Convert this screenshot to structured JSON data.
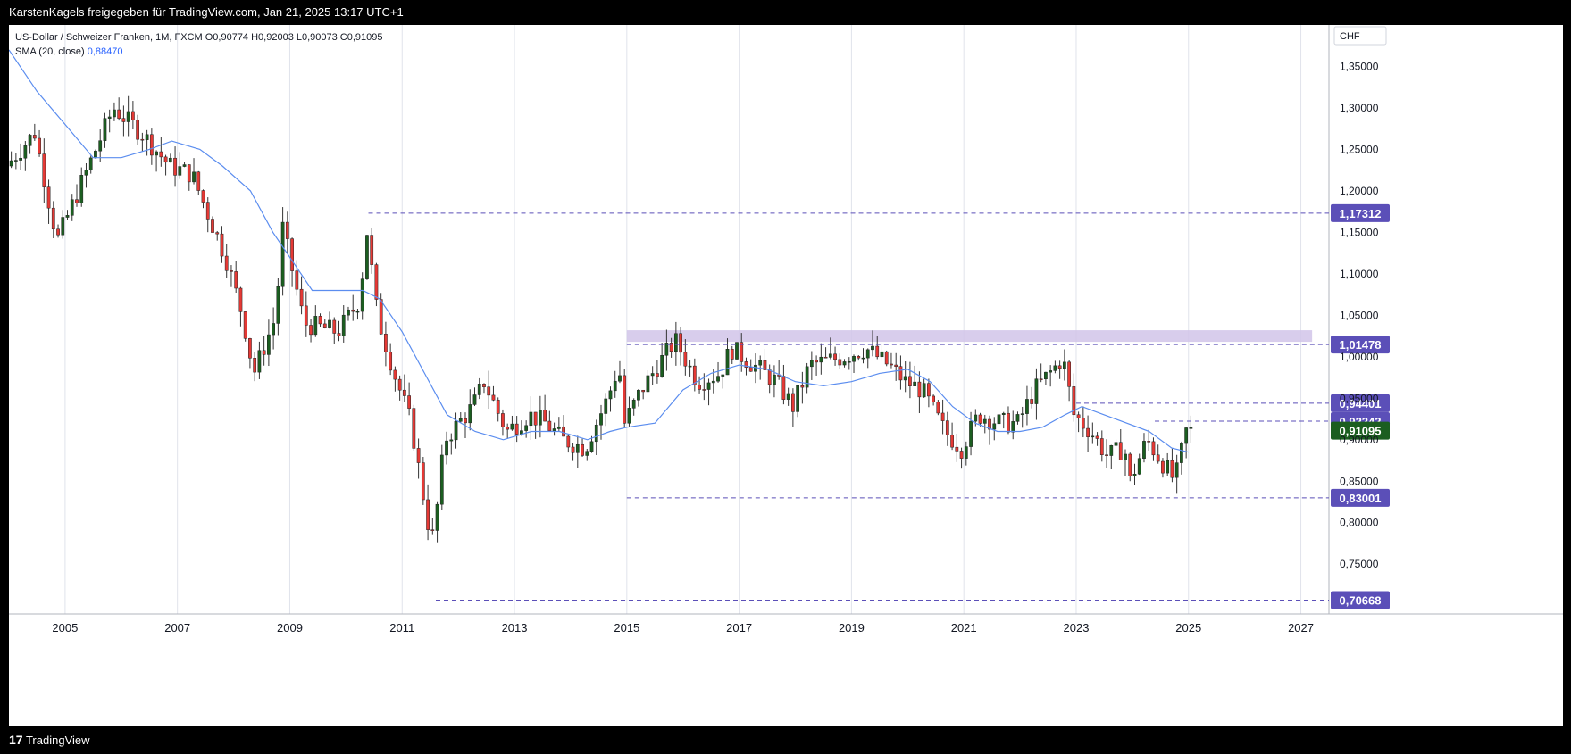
{
  "header": {
    "attribution": "KarstenKagels freigegeben für TradingView.com, Jan 21, 2025 13:17 UTC+1"
  },
  "legend": {
    "symbol": "US-Dollar / Schweizer Franken, 1M, FXCM",
    "ohlc": "O0,90774  H0,92003  L0,90073  C0,91095",
    "sma_label": "SMA (20, close)",
    "sma_value": "0,88470"
  },
  "footer": {
    "brand": "TradingView",
    "brand_mark": "17"
  },
  "colors": {
    "up": "#26a69a",
    "up_dark": "#1b5e20",
    "down": "#e53935",
    "sma": "#5b8def",
    "level": "#5b4fb8",
    "zone": "#d1c4e9",
    "last": "#1b5e20"
  },
  "chart_data": {
    "type": "candlestick",
    "currency": "CHF",
    "y_ticks": [
      0.75,
      0.8,
      0.85,
      0.9,
      0.95,
      1.0,
      1.05,
      1.1,
      1.15,
      1.2,
      1.25,
      1.3,
      1.35
    ],
    "y_tick_labels": [
      "0,75000",
      "0,80000",
      "0,85000",
      "0,90000",
      "0,95000",
      "1,00000",
      "1,05000",
      "1,10000",
      "1,15000",
      "1,20000",
      "1,25000",
      "1,30000",
      "1,35000"
    ],
    "x_ticks": [
      2005,
      2007,
      2009,
      2011,
      2013,
      2015,
      2017,
      2019,
      2021,
      2023,
      2025,
      2027
    ],
    "x_tick_labels": [
      "2005",
      "2007",
      "2009",
      "2011",
      "2013",
      "2015",
      "2017",
      "2019",
      "2021",
      "2023",
      "2025",
      "2027"
    ],
    "y_range": [
      0.69,
      1.4
    ],
    "x_range": [
      2004.0,
      2027.5
    ],
    "levels": [
      {
        "label": "1,17312",
        "value": 1.17312,
        "from": 2010.4
      },
      {
        "label": "1,01478",
        "value": 1.01478,
        "from": 2015.0
      },
      {
        "label": "0,94401",
        "value": 0.94401,
        "from": 2023.0
      },
      {
        "label": "0,92242",
        "value": 0.92242,
        "from": 2024.4
      },
      {
        "label": "0,83001",
        "value": 0.83001,
        "from": 2015.0
      },
      {
        "label": "0,70668",
        "value": 0.70668,
        "from": 2011.6
      }
    ],
    "last_price": {
      "label": "0,91095",
      "value": 0.91095
    },
    "resistance_zone": {
      "from": 2015.0,
      "to": 2027.2,
      "low": 1.018,
      "high": 1.032
    },
    "monthly_closes": [
      [
        2004.0,
        1.23
      ],
      [
        2004.5,
        1.27
      ],
      [
        2004.9,
        1.14
      ],
      [
        2005.4,
        1.22
      ],
      [
        2005.9,
        1.3
      ],
      [
        2006.4,
        1.27
      ],
      [
        2006.9,
        1.23
      ],
      [
        2007.3,
        1.22
      ],
      [
        2007.9,
        1.12
      ],
      [
        2008.2,
        1.05
      ],
      [
        2008.4,
        0.98
      ],
      [
        2008.8,
        1.05
      ],
      [
        2008.9,
        1.16
      ],
      [
        2009.3,
        1.04
      ],
      [
        2009.9,
        1.03
      ],
      [
        2010.3,
        1.07
      ],
      [
        2010.4,
        1.16
      ],
      [
        2010.6,
        1.05
      ],
      [
        2010.9,
        0.98
      ],
      [
        2011.2,
        0.92
      ],
      [
        2011.5,
        0.8
      ],
      [
        2011.6,
        0.78
      ],
      [
        2011.8,
        0.9
      ],
      [
        2012.3,
        0.94
      ],
      [
        2012.5,
        0.97
      ],
      [
        2012.9,
        0.91
      ],
      [
        2013.3,
        0.93
      ],
      [
        2013.6,
        0.92
      ],
      [
        2013.9,
        0.9
      ],
      [
        2014.3,
        0.89
      ],
      [
        2014.7,
        0.95
      ],
      [
        2014.9,
        0.99
      ],
      [
        2015.0,
        0.92
      ],
      [
        2015.3,
        0.96
      ],
      [
        2015.9,
        1.02
      ],
      [
        2016.3,
        0.97
      ],
      [
        2016.7,
        0.98
      ],
      [
        2016.9,
        1.01
      ],
      [
        2017.3,
        0.99
      ],
      [
        2017.7,
        0.97
      ],
      [
        2018.0,
        0.94
      ],
      [
        2018.3,
        0.99
      ],
      [
        2018.9,
        1.0
      ],
      [
        2019.3,
        1.01
      ],
      [
        2019.7,
        0.99
      ],
      [
        2020.0,
        0.97
      ],
      [
        2020.3,
        0.96
      ],
      [
        2020.7,
        0.91
      ],
      [
        2021.0,
        0.89
      ],
      [
        2021.3,
        0.93
      ],
      [
        2021.7,
        0.92
      ],
      [
        2022.0,
        0.92
      ],
      [
        2022.3,
        0.96
      ],
      [
        2022.7,
        0.99
      ],
      [
        2022.8,
        1.0
      ],
      [
        2023.0,
        0.93
      ],
      [
        2023.3,
        0.91
      ],
      [
        2023.6,
        0.88
      ],
      [
        2023.9,
        0.89
      ],
      [
        2024.0,
        0.85
      ],
      [
        2024.3,
        0.9
      ],
      [
        2024.6,
        0.87
      ],
      [
        2024.8,
        0.85
      ],
      [
        2024.9,
        0.88
      ],
      [
        2025.0,
        0.91
      ]
    ],
    "sma_points": [
      [
        2004.0,
        1.37
      ],
      [
        2004.5,
        1.32
      ],
      [
        2005.0,
        1.28
      ],
      [
        2005.5,
        1.24
      ],
      [
        2006.0,
        1.24
      ],
      [
        2006.5,
        1.25
      ],
      [
        2006.9,
        1.26
      ],
      [
        2007.4,
        1.25
      ],
      [
        2007.8,
        1.23
      ],
      [
        2008.3,
        1.2
      ],
      [
        2008.7,
        1.15
      ],
      [
        2009.0,
        1.12
      ],
      [
        2009.4,
        1.08
      ],
      [
        2009.8,
        1.08
      ],
      [
        2010.3,
        1.08
      ],
      [
        2010.6,
        1.07
      ],
      [
        2011.0,
        1.03
      ],
      [
        2011.4,
        0.98
      ],
      [
        2011.8,
        0.93
      ],
      [
        2012.3,
        0.91
      ],
      [
        2012.8,
        0.9
      ],
      [
        2013.3,
        0.91
      ],
      [
        2013.8,
        0.91
      ],
      [
        2014.3,
        0.9
      ],
      [
        2014.7,
        0.91
      ],
      [
        2015.0,
        0.915
      ],
      [
        2015.5,
        0.92
      ],
      [
        2016.0,
        0.96
      ],
      [
        2016.5,
        0.98
      ],
      [
        2017.0,
        0.99
      ],
      [
        2017.5,
        0.985
      ],
      [
        2018.0,
        0.97
      ],
      [
        2018.5,
        0.965
      ],
      [
        2019.0,
        0.97
      ],
      [
        2019.5,
        0.98
      ],
      [
        2020.0,
        0.985
      ],
      [
        2020.4,
        0.97
      ],
      [
        2020.8,
        0.94
      ],
      [
        2021.2,
        0.92
      ],
      [
        2021.6,
        0.91
      ],
      [
        2022.0,
        0.91
      ],
      [
        2022.4,
        0.915
      ],
      [
        2022.8,
        0.93
      ],
      [
        2023.1,
        0.94
      ],
      [
        2023.5,
        0.93
      ],
      [
        2023.9,
        0.92
      ],
      [
        2024.3,
        0.91
      ],
      [
        2024.7,
        0.89
      ],
      [
        2025.0,
        0.885
      ]
    ]
  }
}
